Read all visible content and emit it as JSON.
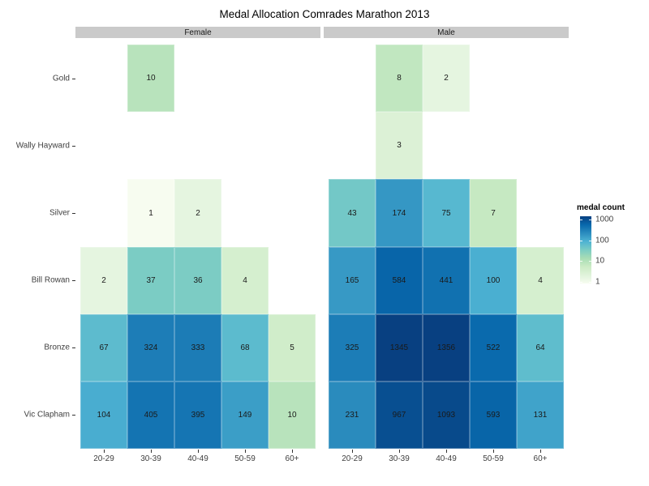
{
  "chart_data": {
    "type": "heatmap",
    "title": "Medal Allocation Comrades Marathon 2013",
    "x_categories": [
      "20-29",
      "30-39",
      "40-49",
      "50-59",
      "60+"
    ],
    "y_categories": [
      "Gold",
      "Wally Hayward",
      "Silver",
      "Bill Rowan",
      "Bronze",
      "Vic Clapham"
    ],
    "facets": [
      {
        "label": "Female",
        "values": [
          [
            null,
            10,
            null,
            null,
            null
          ],
          [
            null,
            null,
            null,
            null,
            null
          ],
          [
            null,
            1,
            2,
            null,
            null
          ],
          [
            2,
            37,
            36,
            4,
            null
          ],
          [
            67,
            324,
            333,
            68,
            5
          ],
          [
            104,
            405,
            395,
            149,
            10
          ]
        ]
      },
      {
        "label": "Male",
        "values": [
          [
            null,
            8,
            2,
            null,
            null
          ],
          [
            null,
            3,
            null,
            null,
            null
          ],
          [
            43,
            174,
            75,
            7,
            null
          ],
          [
            165,
            584,
            441,
            100,
            4
          ],
          [
            325,
            1345,
            1356,
            522,
            64
          ],
          [
            231,
            967,
            1093,
            593,
            131
          ]
        ]
      }
    ],
    "legend": {
      "title": "medal count",
      "tick_values": [
        1000,
        100,
        10,
        1
      ],
      "scale": "log10",
      "position": "right"
    },
    "colors": {
      "palette_name": "GnBu",
      "palette": [
        "#f7fcf0",
        "#e0f3db",
        "#ccebc5",
        "#a8ddb5",
        "#7bccc4",
        "#4eb3d3",
        "#2b8cbe",
        "#0868ac",
        "#084081"
      ],
      "strip_background": "#cacaca",
      "panel_background": "#ffffff",
      "axis_text": "#404040",
      "cell_text": "#1a1a1a"
    },
    "layout_hints": {
      "grid": "off",
      "facet_row": "top strips",
      "value_labels": "shown in cells"
    }
  }
}
